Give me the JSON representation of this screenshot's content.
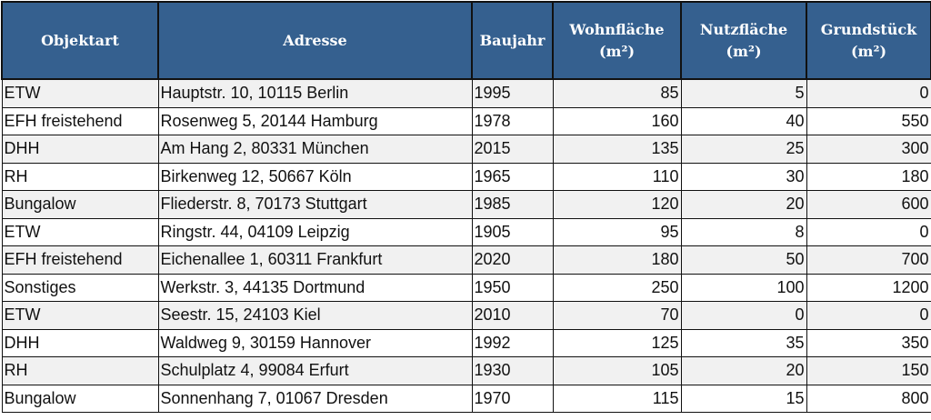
{
  "header_color": "#35608f",
  "columns": [
    "Objektart",
    "Adresse",
    "Baujahr",
    "Wohnfläche (m²)",
    "Nutzfläche (m²)",
    "Grundstück (m²)"
  ],
  "rows": [
    [
      "ETW",
      "Hauptstr. 10, 10115 Berlin",
      "1995",
      "85",
      "5",
      "0"
    ],
    [
      "EFH freistehend",
      "Rosenweg 5, 20144 Hamburg",
      "1978",
      "160",
      "40",
      "550"
    ],
    [
      "DHH",
      "Am Hang 2, 80331 München",
      "2015",
      "135",
      "25",
      "300"
    ],
    [
      "RH",
      "Birkenweg 12, 50667 Köln",
      "1965",
      "110",
      "30",
      "180"
    ],
    [
      "Bungalow",
      "Fliederstr. 8, 70173 Stuttgart",
      "1985",
      "120",
      "20",
      "600"
    ],
    [
      "ETW",
      "Ringstr. 44, 04109 Leipzig",
      "1905",
      "95",
      "8",
      "0"
    ],
    [
      "EFH freistehend",
      "Eichenallee 1, 60311 Frankfurt",
      "2020",
      "180",
      "50",
      "700"
    ],
    [
      "Sonstiges",
      "Werkstr. 3, 44135 Dortmund",
      "1950",
      "250",
      "100",
      "1200"
    ],
    [
      "ETW",
      "Seestr. 15, 24103 Kiel",
      "2010",
      "70",
      "0",
      "0"
    ],
    [
      "DHH",
      "Waldweg 9, 30159 Hannover",
      "1992",
      "125",
      "35",
      "350"
    ],
    [
      "RH",
      "Schulplatz 4, 99084 Erfurt",
      "1930",
      "105",
      "20",
      "150"
    ],
    [
      "Bungalow",
      "Sonnenhang 7, 01067 Dresden",
      "1970",
      "115",
      "15",
      "800"
    ]
  ]
}
